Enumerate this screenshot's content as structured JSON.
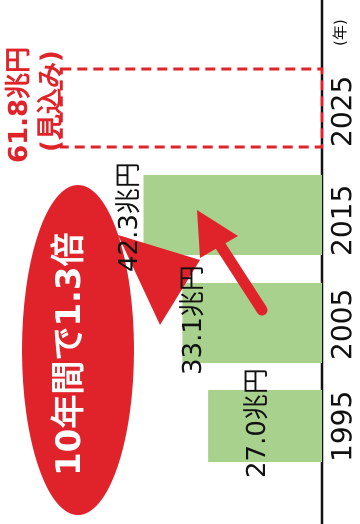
{
  "chart_data": {
    "type": "bar",
    "categories": [
      "1995",
      "2005",
      "2015",
      "2025"
    ],
    "values": [
      27.0,
      33.1,
      42.3,
      61.8
    ],
    "value_labels": [
      "27.0兆円",
      "33.1兆円",
      "42.3兆円",
      "61.8兆円"
    ],
    "projected": [
      false,
      false,
      false,
      true
    ],
    "projection_note": "(見込み)",
    "unit_label": "(年)",
    "callout_text": "10年間で1.3倍",
    "ylim": [
      0,
      64
    ],
    "colors": {
      "bar": "#a9d18e",
      "projected_border": "#e0232a",
      "callout": "#e0232a",
      "axis": "#111111"
    }
  }
}
